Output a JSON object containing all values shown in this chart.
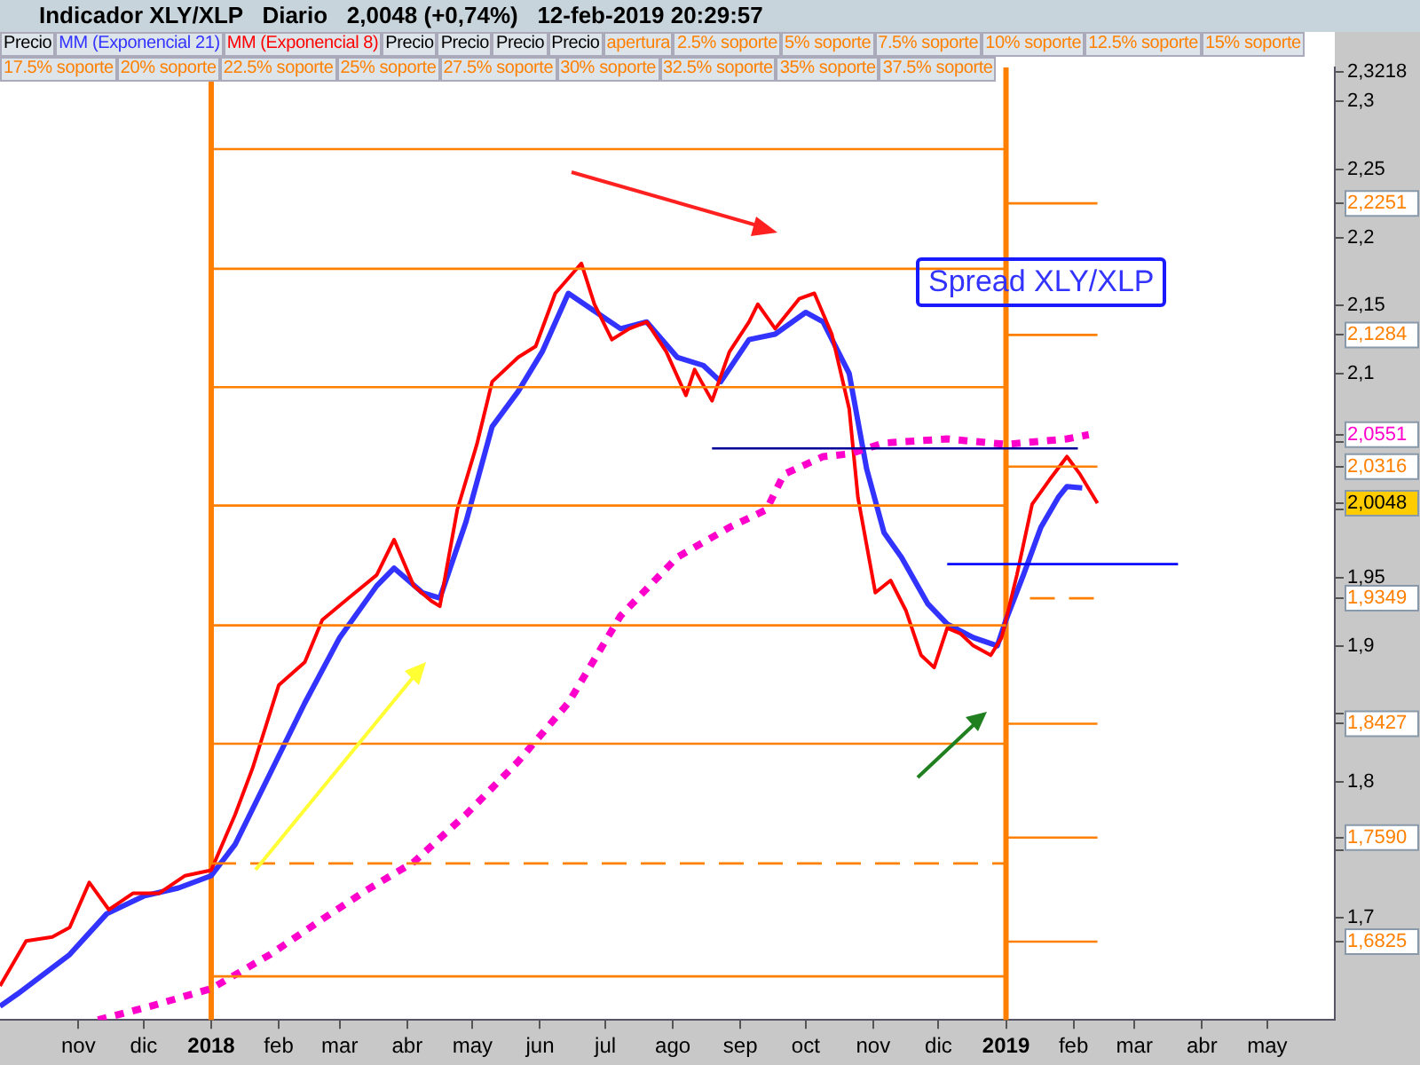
{
  "chart_data": {
    "type": "line",
    "title": "Indicador XLY/XLP   Diario   2,0048 (+0,74%)   12-feb-2019 20:29:57",
    "subtitle": "Spread XLY/XLP",
    "annotations": [
      "Precio",
      "Precio",
      "Precio",
      "Precio",
      "Precio",
      "apertura",
      "2.5% soporte",
      "5% soporte",
      "7.5% soporte",
      "10% soporte",
      "12.5% soporte",
      "15% soporte",
      "17.5% soporte",
      "20% soporte",
      "22.5% soporte",
      "25% soporte",
      "27.5% soporte",
      "30% soporte",
      "32.5% soporte",
      "35% soporte",
      "37.5% soporte"
    ],
    "legend": "top",
    "grid": false,
    "marker": "none",
    "xlim": [
      "2017-09-26",
      "2019-06-01"
    ],
    "xticks": [
      {
        "value": "2017-11-01",
        "label": "nov"
      },
      {
        "value": "2017-12-01",
        "label": "dic"
      },
      {
        "value": "2018-01-01",
        "label": "2018"
      },
      {
        "value": "2018-02-01",
        "label": "feb"
      },
      {
        "value": "2018-03-01",
        "label": "mar"
      },
      {
        "value": "2018-04-01",
        "label": "abr"
      },
      {
        "value": "2018-05-01",
        "label": "may"
      },
      {
        "value": "2018-06-01",
        "label": "jun"
      },
      {
        "value": "2018-07-01",
        "label": "jul"
      },
      {
        "value": "2018-08-01",
        "label": "ago"
      },
      {
        "value": "2018-09-01",
        "label": "sep"
      },
      {
        "value": "2018-10-01",
        "label": "oct"
      },
      {
        "value": "2018-11-01",
        "label": "nov"
      },
      {
        "value": "2018-12-01",
        "label": "dic"
      },
      {
        "value": "2019-01-01",
        "label": "2019"
      },
      {
        "value": "2019-02-01",
        "label": "feb"
      },
      {
        "value": "2019-03-01",
        "label": "mar"
      },
      {
        "value": "2019-04-01",
        "label": "abr"
      },
      {
        "value": "2019-05-01",
        "label": "may"
      }
    ],
    "ylim": [
      1.625,
      2.325
    ],
    "yticks": [
      {
        "value": 1.7,
        "label": "1,7"
      },
      {
        "value": 1.75,
        "label": null
      },
      {
        "value": 1.8,
        "label": "1,8"
      },
      {
        "value": 1.85,
        "label": null
      },
      {
        "value": 1.9,
        "label": "1,9"
      },
      {
        "value": 1.95,
        "label": "1,95"
      },
      {
        "value": 1.9349,
        "label": "1,9349"
      },
      {
        "value": 1.8427,
        "label": "1,8427"
      },
      {
        "value": 1.759,
        "label": "1,7590"
      },
      {
        "value": 1.6825,
        "label": "1,6825"
      },
      {
        "value": 2.0048,
        "label": "2,0048"
      },
      {
        "value": 2.0316,
        "label": "2,0316"
      },
      {
        "value": 2.0551,
        "label": "2,0551"
      },
      {
        "value": 2.1284,
        "label": "2,1284"
      },
      {
        "value": 2.2251,
        "label": "2,2251"
      },
      {
        "value": 2.3218,
        "label": "2,3218"
      },
      {
        "value": 2.0,
        "label": null
      },
      {
        "value": 2.05,
        "label": null
      },
      {
        "value": 2.1,
        "label": "2,1"
      },
      {
        "value": 2.15,
        "label": "2,15"
      },
      {
        "value": 2.2,
        "label": "2,2"
      },
      {
        "value": 2.25,
        "label": "2,25"
      },
      {
        "value": 2.3,
        "label": "2,3"
      }
    ],
    "ref_lines": [
      {
        "axis": "x",
        "value": "2018-01-01",
        "color": "#ff8000"
      },
      {
        "axis": "x",
        "value": "2019-01-01",
        "color": "#ff8000"
      }
    ],
    "series": [
      {
        "name": "MM (Exponencial 21)",
        "color": "#3333ff",
        "x": [
          "2017-09-26",
          "2017-10-04",
          "2017-10-28",
          "2017-11-14",
          "2017-12-01",
          "2017-12-17",
          "2018-01-01",
          "2018-01-12",
          "2018-01-28",
          "2018-02-13",
          "2018-03-01",
          "2018-03-18",
          "2018-03-26",
          "2018-04-08",
          "2018-04-16",
          "2018-04-28",
          "2018-05-10",
          "2018-05-22",
          "2018-06-02",
          "2018-06-14",
          "2018-06-26",
          "2018-07-08",
          "2018-07-20",
          "2018-08-03",
          "2018-08-15",
          "2018-08-23",
          "2018-09-05",
          "2018-09-17",
          "2018-10-01",
          "2018-10-09",
          "2018-10-21",
          "2018-10-29",
          "2018-11-06",
          "2018-11-14",
          "2018-11-26",
          "2018-12-05",
          "2018-12-17",
          "2018-12-28",
          "2019-01-01",
          "2019-01-09",
          "2019-01-17",
          "2019-01-25",
          "2019-01-29",
          "2019-02-05"
        ],
        "values": [
          1.635,
          1.644,
          1.673,
          1.703,
          1.716,
          1.722,
          1.731,
          1.754,
          1.806,
          1.858,
          1.906,
          1.944,
          1.957,
          1.939,
          1.935,
          1.991,
          2.061,
          2.087,
          2.116,
          2.159,
          2.146,
          2.133,
          2.138,
          2.112,
          2.106,
          2.094,
          2.125,
          2.129,
          2.145,
          2.138,
          2.1,
          2.03,
          1.983,
          1.965,
          1.931,
          1.916,
          1.906,
          1.9,
          1.919,
          1.952,
          1.987,
          2.009,
          2.017,
          2.016
        ]
      },
      {
        "name": "MM (Exponencial 8)",
        "color": "#ff0000",
        "x": [
          "2017-09-26",
          "2017-10-08",
          "2017-10-20",
          "2017-10-28",
          "2017-11-06",
          "2017-11-15",
          "2017-11-26",
          "2017-12-08",
          "2017-12-20",
          "2018-01-01",
          "2018-01-12",
          "2018-01-20",
          "2018-02-01",
          "2018-02-13",
          "2018-02-21",
          "2018-03-05",
          "2018-03-18",
          "2018-03-26",
          "2018-04-04",
          "2018-04-12",
          "2018-04-16",
          "2018-04-24",
          "2018-05-03",
          "2018-05-10",
          "2018-05-22",
          "2018-05-30",
          "2018-06-08",
          "2018-06-20",
          "2018-06-26",
          "2018-07-04",
          "2018-07-12",
          "2018-07-20",
          "2018-07-29",
          "2018-08-07",
          "2018-08-11",
          "2018-08-19",
          "2018-08-27",
          "2018-09-05",
          "2018-09-09",
          "2018-09-17",
          "2018-09-28",
          "2018-10-05",
          "2018-10-13",
          "2018-10-21",
          "2018-10-25",
          "2018-11-02",
          "2018-11-09",
          "2018-11-16",
          "2018-11-23",
          "2018-11-29",
          "2018-12-05",
          "2018-12-11",
          "2018-12-17",
          "2018-12-25",
          "2018-12-30",
          "2019-01-06",
          "2019-01-13",
          "2019-01-21",
          "2019-01-29",
          "2019-02-04",
          "2019-02-12"
        ],
        "values": [
          1.65,
          1.683,
          1.686,
          1.693,
          1.726,
          1.706,
          1.718,
          1.718,
          1.731,
          1.735,
          1.776,
          1.81,
          1.871,
          1.888,
          1.919,
          1.935,
          1.952,
          1.978,
          1.944,
          1.933,
          1.929,
          2.0,
          2.048,
          2.094,
          2.112,
          2.12,
          2.159,
          2.181,
          2.151,
          2.125,
          2.133,
          2.138,
          2.116,
          2.084,
          2.103,
          2.08,
          2.116,
          2.138,
          2.151,
          2.133,
          2.155,
          2.159,
          2.129,
          2.074,
          2.009,
          1.939,
          1.948,
          1.926,
          1.893,
          1.884,
          1.913,
          1.909,
          1.9,
          1.893,
          1.906,
          1.952,
          2.004,
          2.022,
          2.039,
          2.026,
          2.0048
        ]
      },
      {
        "color": "#ff00cc",
        "line_style": "dotted",
        "x": [
          "2017-11-10",
          "2017-12-04",
          "2018-01-01",
          "2018-01-28",
          "2018-02-21",
          "2018-03-13",
          "2018-04-04",
          "2018-04-28",
          "2018-05-22",
          "2018-06-14",
          "2018-07-08",
          "2018-08-03",
          "2018-08-27",
          "2018-09-13",
          "2018-09-21",
          "2018-10-09",
          "2018-10-21",
          "2018-11-06",
          "2018-12-05",
          "2019-01-01",
          "2019-01-29",
          "2019-02-08"
        ],
        "values": [
          1.625,
          1.635,
          1.648,
          1.673,
          1.699,
          1.72,
          1.741,
          1.776,
          1.815,
          1.858,
          1.922,
          1.965,
          1.987,
          2.0,
          2.026,
          2.039,
          2.041,
          2.049,
          2.052,
          2.048,
          2.052,
          2.0551
        ]
      },
      {
        "color": "#ff8000",
        "x": [
          "2018-01-01",
          "2019-01-01"
        ],
        "values": [
          2.265,
          2.265
        ]
      },
      {
        "color": "#ff8000",
        "x": [
          "2018-01-01",
          "2019-01-01"
        ],
        "values": [
          2.177,
          2.177
        ]
      },
      {
        "color": "#ff8000",
        "x": [
          "2018-01-01",
          "2019-01-01"
        ],
        "values": [
          2.09,
          2.09
        ]
      },
      {
        "color": "#ff8000",
        "x": [
          "2018-01-01",
          "2019-01-01"
        ],
        "values": [
          2.003,
          2.003
        ]
      },
      {
        "color": "#ff8000",
        "x": [
          "2018-01-01",
          "2019-01-01"
        ],
        "values": [
          1.915,
          1.915
        ]
      },
      {
        "color": "#ff8000",
        "x": [
          "2018-01-01",
          "2019-01-01"
        ],
        "values": [
          1.828,
          1.828
        ]
      },
      {
        "color": "#ff8000",
        "line_style": "dashed",
        "x": [
          "2018-01-01",
          "2019-01-01"
        ],
        "values": [
          1.74,
          1.74
        ]
      },
      {
        "color": "#ff8000",
        "x": [
          "2018-01-01",
          "2019-01-01"
        ],
        "values": [
          1.657,
          1.657
        ]
      },
      {
        "color": "#ff8000",
        "x": [
          "2019-01-01",
          "2019-02-12"
        ],
        "values": [
          2.2251,
          2.2251
        ]
      },
      {
        "color": "#ff8000",
        "x": [
          "2019-01-01",
          "2019-02-12"
        ],
        "values": [
          2.1284,
          2.1284
        ]
      },
      {
        "color": "#ff8000",
        "x": [
          "2019-01-01",
          "2019-02-12"
        ],
        "values": [
          2.0316,
          2.0316
        ]
      },
      {
        "color": "#ff8000",
        "line_style": "dashed",
        "x": [
          "2019-01-12",
          "2019-02-12"
        ],
        "values": [
          1.9349,
          1.9349
        ]
      },
      {
        "color": "#ff8000",
        "x": [
          "2019-01-01",
          "2019-02-12"
        ],
        "values": [
          1.8427,
          1.8427
        ]
      },
      {
        "color": "#ff8000",
        "x": [
          "2019-01-01",
          "2019-02-12"
        ],
        "values": [
          1.759,
          1.759
        ]
      },
      {
        "color": "#ff8000",
        "x": [
          "2019-01-01",
          "2019-02-12"
        ],
        "values": [
          1.6825,
          1.6825
        ]
      },
      {
        "color": "#000099",
        "x": [
          "2018-08-19",
          "2019-02-03"
        ],
        "values": [
          2.045,
          2.045
        ]
      },
      {
        "color": "#0000ff",
        "x": [
          "2018-12-05",
          "2019-03-21"
        ],
        "values": [
          1.96,
          1.96
        ]
      }
    ]
  }
}
